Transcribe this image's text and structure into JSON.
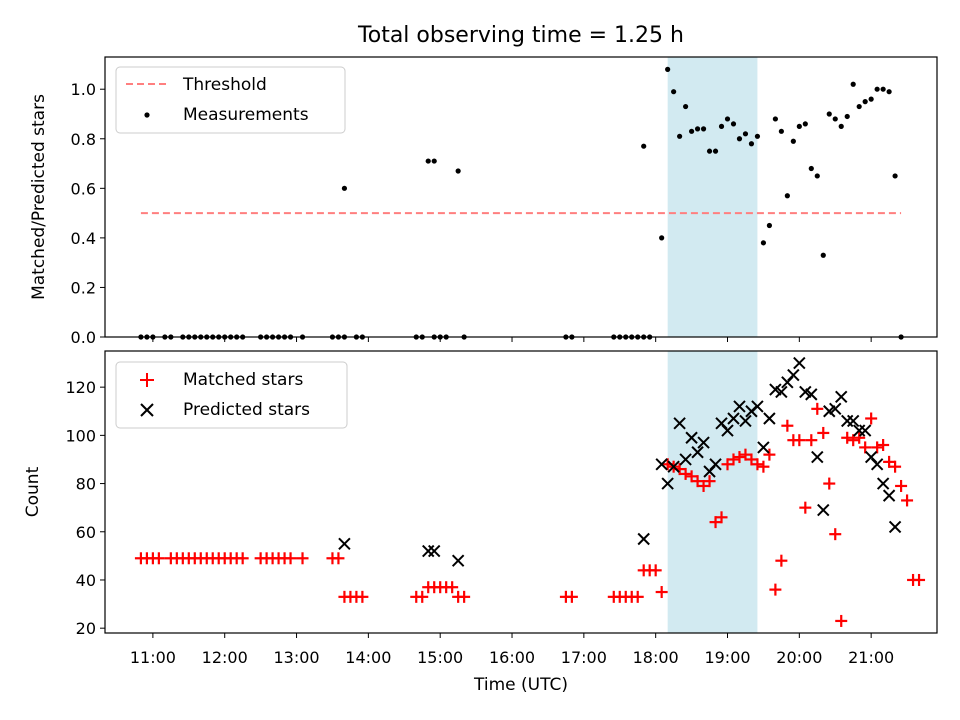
{
  "title": "Total observing time = 1.25 h",
  "chart_data": [
    {
      "type": "scatter",
      "panel": "top",
      "ylabel": "Matched/Predicted stars",
      "ylim": [
        0,
        1.13
      ],
      "yticks": [
        0.0,
        0.2,
        0.4,
        0.6,
        0.8,
        1.0
      ],
      "ytick_labels": [
        "0.0",
        "0.2",
        "0.4",
        "0.6",
        "0.8",
        "1.0"
      ],
      "legend": {
        "placement": "top-left",
        "entries": [
          "Threshold",
          "Measurements"
        ]
      },
      "threshold": {
        "name": "Threshold",
        "y": 0.5,
        "x_start": "10:50",
        "x_end": "21:25",
        "color": "#ff7f7f"
      },
      "series": [
        {
          "name": "Measurements",
          "marker": "dot",
          "color": "#000000",
          "points": [
            [
              "10:50",
              0
            ],
            [
              "10:55",
              0
            ],
            [
              "11:00",
              0
            ],
            [
              "11:10",
              0
            ],
            [
              "11:15",
              0
            ],
            [
              "11:25",
              0
            ],
            [
              "11:30",
              0
            ],
            [
              "11:35",
              0
            ],
            [
              "11:40",
              0
            ],
            [
              "11:45",
              0
            ],
            [
              "11:50",
              0
            ],
            [
              "11:55",
              0
            ],
            [
              "12:00",
              0
            ],
            [
              "12:05",
              0
            ],
            [
              "12:10",
              0
            ],
            [
              "12:15",
              0
            ],
            [
              "12:30",
              0
            ],
            [
              "12:35",
              0
            ],
            [
              "12:40",
              0
            ],
            [
              "12:45",
              0
            ],
            [
              "12:50",
              0
            ],
            [
              "12:55",
              0
            ],
            [
              "13:05",
              0
            ],
            [
              "13:30",
              0
            ],
            [
              "13:35",
              0
            ],
            [
              "13:40",
              0
            ],
            [
              "13:50",
              0
            ],
            [
              "13:55",
              0
            ],
            [
              "14:40",
              0
            ],
            [
              "14:45",
              0
            ],
            [
              "14:55",
              0
            ],
            [
              "15:00",
              0
            ],
            [
              "15:05",
              0
            ],
            [
              "15:20",
              0
            ],
            [
              "16:45",
              0
            ],
            [
              "16:50",
              0
            ],
            [
              "17:25",
              0
            ],
            [
              "17:30",
              0
            ],
            [
              "17:35",
              0
            ],
            [
              "17:40",
              0
            ],
            [
              "17:45",
              0
            ],
            [
              "17:50",
              0
            ],
            [
              "17:55",
              0
            ],
            [
              "13:40",
              0.6
            ],
            [
              "14:50",
              0.71
            ],
            [
              "14:55",
              0.71
            ],
            [
              "15:15",
              0.67
            ],
            [
              "17:50",
              0.77
            ],
            [
              "18:05",
              0.4
            ],
            [
              "18:10",
              1.08
            ],
            [
              "18:15",
              0.99
            ],
            [
              "18:20",
              0.81
            ],
            [
              "18:25",
              0.93
            ],
            [
              "18:30",
              0.83
            ],
            [
              "18:35",
              0.84
            ],
            [
              "18:40",
              0.84
            ],
            [
              "18:45",
              0.75
            ],
            [
              "18:50",
              0.75
            ],
            [
              "18:55",
              0.85
            ],
            [
              "19:00",
              0.88
            ],
            [
              "19:05",
              0.86
            ],
            [
              "19:10",
              0.8
            ],
            [
              "19:15",
              0.82
            ],
            [
              "19:20",
              0.78
            ],
            [
              "19:25",
              0.81
            ],
            [
              "19:30",
              0.38
            ],
            [
              "19:35",
              0.45
            ],
            [
              "19:40",
              0.88
            ],
            [
              "19:45",
              0.83
            ],
            [
              "19:50",
              0.57
            ],
            [
              "19:55",
              0.79
            ],
            [
              "20:00",
              0.85
            ],
            [
              "20:05",
              0.86
            ],
            [
              "20:10",
              0.68
            ],
            [
              "20:15",
              0.65
            ],
            [
              "20:20",
              0.33
            ],
            [
              "20:25",
              0.9
            ],
            [
              "20:30",
              0.88
            ],
            [
              "20:35",
              0.85
            ],
            [
              "20:40",
              0.89
            ],
            [
              "20:45",
              1.02
            ],
            [
              "20:50",
              0.93
            ],
            [
              "20:55",
              0.95
            ],
            [
              "21:00",
              0.96
            ],
            [
              "21:05",
              1.0
            ],
            [
              "21:10",
              1.0
            ],
            [
              "21:15",
              0.99
            ],
            [
              "21:20",
              0.65
            ],
            [
              "21:25",
              0
            ]
          ]
        }
      ]
    },
    {
      "type": "scatter",
      "panel": "bottom",
      "ylabel": "Count",
      "xlabel": "Time (UTC)",
      "ylim": [
        18,
        135
      ],
      "yticks": [
        20,
        40,
        60,
        80,
        100,
        120
      ],
      "ytick_labels": [
        "20",
        "40",
        "60",
        "80",
        "100",
        "120"
      ],
      "legend": {
        "placement": "top-left",
        "entries": [
          "Matched stars",
          "Predicted stars"
        ]
      },
      "series": [
        {
          "name": "Matched stars",
          "marker": "plus",
          "color": "#ff0000",
          "points": [
            [
              "10:50",
              49
            ],
            [
              "10:55",
              49
            ],
            [
              "11:00",
              49
            ],
            [
              "11:05",
              49
            ],
            [
              "11:15",
              49
            ],
            [
              "11:20",
              49
            ],
            [
              "11:25",
              49
            ],
            [
              "11:30",
              49
            ],
            [
              "11:35",
              49
            ],
            [
              "11:40",
              49
            ],
            [
              "11:45",
              49
            ],
            [
              "11:50",
              49
            ],
            [
              "11:55",
              49
            ],
            [
              "12:00",
              49
            ],
            [
              "12:05",
              49
            ],
            [
              "12:10",
              49
            ],
            [
              "12:15",
              49
            ],
            [
              "12:30",
              49
            ],
            [
              "12:35",
              49
            ],
            [
              "12:40",
              49
            ],
            [
              "12:45",
              49
            ],
            [
              "12:50",
              49
            ],
            [
              "12:55",
              49
            ],
            [
              "13:05",
              49
            ],
            [
              "13:30",
              49
            ],
            [
              "13:35",
              49
            ],
            [
              "13:40",
              33
            ],
            [
              "13:45",
              33
            ],
            [
              "13:50",
              33
            ],
            [
              "13:55",
              33
            ],
            [
              "14:40",
              33
            ],
            [
              "14:45",
              33
            ],
            [
              "14:50",
              37
            ],
            [
              "14:55",
              37
            ],
            [
              "15:00",
              37
            ],
            [
              "15:05",
              37
            ],
            [
              "15:10",
              37
            ],
            [
              "15:15",
              33
            ],
            [
              "15:20",
              33
            ],
            [
              "16:45",
              33
            ],
            [
              "16:50",
              33
            ],
            [
              "17:25",
              33
            ],
            [
              "17:30",
              33
            ],
            [
              "17:35",
              33
            ],
            [
              "17:40",
              33
            ],
            [
              "17:45",
              33
            ],
            [
              "17:50",
              44
            ],
            [
              "17:55",
              44
            ],
            [
              "18:00",
              44
            ],
            [
              "18:05",
              35
            ],
            [
              "18:10",
              88
            ],
            [
              "18:15",
              87
            ],
            [
              "18:20",
              86
            ],
            [
              "18:25",
              84
            ],
            [
              "18:30",
              83
            ],
            [
              "18:35",
              81
            ],
            [
              "18:40",
              79
            ],
            [
              "18:45",
              81
            ],
            [
              "18:50",
              64
            ],
            [
              "18:55",
              66
            ],
            [
              "19:00",
              88
            ],
            [
              "19:05",
              90
            ],
            [
              "19:10",
              91
            ],
            [
              "19:15",
              92
            ],
            [
              "19:20",
              90
            ],
            [
              "19:25",
              88
            ],
            [
              "19:30",
              87
            ],
            [
              "19:35",
              92
            ],
            [
              "19:40",
              36
            ],
            [
              "19:45",
              48
            ],
            [
              "19:50",
              104
            ],
            [
              "19:55",
              98
            ],
            [
              "20:00",
              98
            ],
            [
              "20:05",
              70
            ],
            [
              "20:10",
              98
            ],
            [
              "20:15",
              111
            ],
            [
              "20:20",
              101
            ],
            [
              "20:25",
              80
            ],
            [
              "20:30",
              59
            ],
            [
              "20:35",
              23
            ],
            [
              "20:40",
              99
            ],
            [
              "20:45",
              98
            ],
            [
              "20:50",
              99
            ],
            [
              "20:55",
              95
            ],
            [
              "21:00",
              107
            ],
            [
              "21:05",
              95
            ],
            [
              "21:10",
              96
            ],
            [
              "21:15",
              89
            ],
            [
              "21:20",
              87
            ],
            [
              "21:25",
              79
            ],
            [
              "21:30",
              73
            ],
            [
              "21:35",
              40
            ],
            [
              "21:40",
              40
            ]
          ]
        },
        {
          "name": "Predicted stars",
          "marker": "x",
          "color": "#000000",
          "points": [
            [
              "13:40",
              55
            ],
            [
              "14:50",
              52
            ],
            [
              "14:55",
              52
            ],
            [
              "15:15",
              48
            ],
            [
              "17:50",
              57
            ],
            [
              "18:05",
              88
            ],
            [
              "18:10",
              80
            ],
            [
              "18:15",
              87
            ],
            [
              "18:20",
              105
            ],
            [
              "18:25",
              90
            ],
            [
              "18:30",
              99
            ],
            [
              "18:35",
              93
            ],
            [
              "18:40",
              97
            ],
            [
              "18:45",
              85
            ],
            [
              "18:50",
              88
            ],
            [
              "18:55",
              105
            ],
            [
              "19:00",
              102
            ],
            [
              "19:05",
              107
            ],
            [
              "19:10",
              112
            ],
            [
              "19:15",
              106
            ],
            [
              "19:20",
              110
            ],
            [
              "19:25",
              112
            ],
            [
              "19:30",
              95
            ],
            [
              "19:35",
              107
            ],
            [
              "19:40",
              119
            ],
            [
              "19:45",
              118
            ],
            [
              "19:50",
              122
            ],
            [
              "19:55",
              125
            ],
            [
              "20:00",
              130
            ],
            [
              "20:05",
              118
            ],
            [
              "20:10",
              117
            ],
            [
              "20:15",
              91
            ],
            [
              "20:20",
              69
            ],
            [
              "20:25",
              110
            ],
            [
              "20:30",
              111
            ],
            [
              "20:35",
              116
            ],
            [
              "20:40",
              106
            ],
            [
              "20:45",
              106
            ],
            [
              "20:50",
              102
            ],
            [
              "20:55",
              102
            ],
            [
              "21:00",
              91
            ],
            [
              "21:05",
              88
            ],
            [
              "21:10",
              80
            ],
            [
              "21:15",
              75
            ],
            [
              "21:20",
              62
            ]
          ]
        }
      ]
    }
  ],
  "x_axis": {
    "xlim": [
      "10:20",
      "21:55"
    ],
    "ticks": [
      "11:00",
      "12:00",
      "13:00",
      "14:00",
      "15:00",
      "16:00",
      "17:00",
      "18:00",
      "19:00",
      "20:00",
      "21:00"
    ]
  },
  "shaded_span": {
    "x_start": "18:10",
    "x_end": "19:25",
    "color": "#add8e6"
  }
}
